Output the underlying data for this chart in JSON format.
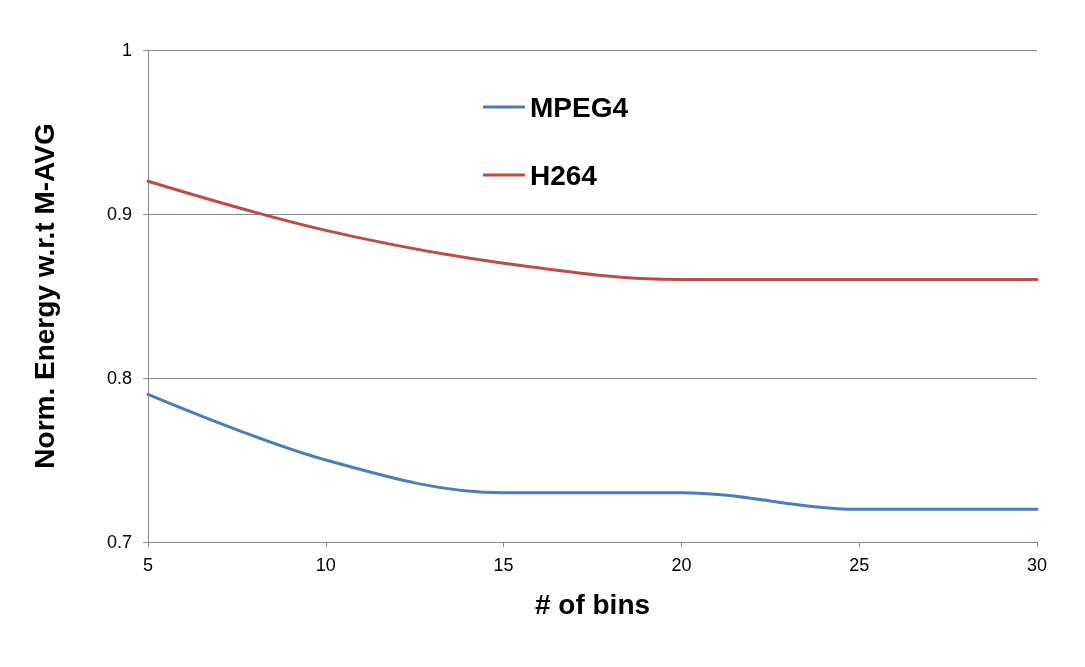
{
  "chart_data": {
    "type": "line",
    "xlabel": "# of bins",
    "ylabel": "Norm. Energy w.r.t M-AVG",
    "x": [
      5,
      10,
      15,
      20,
      25,
      30
    ],
    "series": [
      {
        "name": "MPEG4",
        "color": "#4a7ebb",
        "values": [
          0.79,
          0.75,
          0.73,
          0.73,
          0.72,
          0.72
        ]
      },
      {
        "name": "H264",
        "color": "#be4b48",
        "values": [
          0.92,
          0.89,
          0.87,
          0.86,
          0.86,
          0.86
        ]
      }
    ],
    "xlim": [
      5,
      30
    ],
    "xticks": [
      5,
      10,
      15,
      20,
      25,
      30
    ],
    "ylim": [
      0.7,
      1
    ],
    "yticks": [
      0.7,
      0.8,
      0.9,
      1
    ],
    "grid": "y",
    "legend": "top",
    "marker": "none",
    "line_style": "solid"
  }
}
